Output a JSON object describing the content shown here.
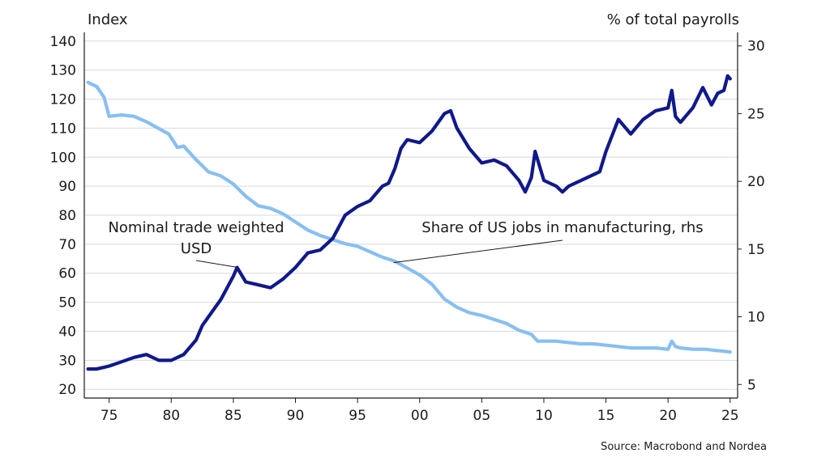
{
  "chart_data": {
    "type": "line",
    "title": "",
    "xlabel": "",
    "left_axis": {
      "label": "Index",
      "range": [
        17,
        143
      ],
      "ticks": [
        20,
        30,
        40,
        50,
        60,
        70,
        80,
        90,
        100,
        110,
        120,
        130,
        140
      ]
    },
    "right_axis": {
      "label": "% of total payrolls",
      "range": [
        4,
        31
      ],
      "ticks": [
        5,
        10,
        15,
        20,
        25,
        30
      ]
    },
    "x_axis": {
      "range": [
        1973.0,
        2025.6
      ],
      "ticks": [
        {
          "year": 1975,
          "label": "75"
        },
        {
          "year": 1980,
          "label": "80"
        },
        {
          "year": 1985,
          "label": "85"
        },
        {
          "year": 1990,
          "label": "90"
        },
        {
          "year": 1995,
          "label": "95"
        },
        {
          "year": 2000,
          "label": "00"
        },
        {
          "year": 2005,
          "label": "05"
        },
        {
          "year": 2010,
          "label": "10"
        },
        {
          "year": 2015,
          "label": "15"
        },
        {
          "year": 2020,
          "label": "20"
        },
        {
          "year": 2025,
          "label": "25"
        }
      ]
    },
    "grid": true,
    "colors": {
      "usd": "#10198a",
      "manufacturing": "#88bff0",
      "grid": "#d9d9d9",
      "axis": "#1a1a1a"
    },
    "series": [
      {
        "name": "Nominal trade weighted USD",
        "axis": "left",
        "x": [
          1973.3,
          1974.0,
          1975.0,
          1976.0,
          1977.0,
          1978.0,
          1979.0,
          1980.0,
          1981.0,
          1982.0,
          1982.5,
          1983.0,
          1984.0,
          1985.0,
          1985.3,
          1986.0,
          1987.0,
          1988.0,
          1989.0,
          1990.0,
          1991.0,
          1992.0,
          1993.0,
          1994.0,
          1995.0,
          1996.0,
          1997.0,
          1997.5,
          1998.0,
          1998.5,
          1999.0,
          2000.0,
          2001.0,
          2002.0,
          2002.5,
          2003.0,
          2004.0,
          2005.0,
          2006.0,
          2007.0,
          2008.0,
          2008.5,
          2009.0,
          2009.3,
          2010.0,
          2011.0,
          2011.5,
          2012.0,
          2013.0,
          2014.0,
          2014.5,
          2015.0,
          2016.0,
          2017.0,
          2018.0,
          2019.0,
          2020.0,
          2020.3,
          2020.6,
          2021.0,
          2022.0,
          2022.8,
          2023.5,
          2024.0,
          2024.5,
          2024.8,
          2025.0
        ],
        "values": [
          27,
          27,
          28,
          29.5,
          31,
          32,
          30,
          30,
          32,
          37,
          42,
          45,
          51,
          59,
          62,
          57,
          56,
          55,
          58,
          62,
          67,
          68,
          72,
          80,
          83,
          85,
          90,
          91,
          96,
          103,
          106,
          105,
          109,
          115,
          116,
          110,
          103,
          98,
          99,
          97,
          92,
          88,
          93,
          102,
          92,
          90,
          88,
          90,
          92,
          94,
          95,
          102,
          113,
          108,
          113,
          116,
          117,
          123,
          114,
          112,
          117,
          124,
          118,
          122,
          123,
          128,
          127
        ]
      },
      {
        "name": "Share of US jobs in manufacturing, rhs",
        "axis": "right",
        "x": [
          1973.3,
          1974.0,
          1974.6,
          1975.0,
          1976.0,
          1977.0,
          1978.0,
          1979.0,
          1979.8,
          1980.5,
          1981.0,
          1982.0,
          1983.0,
          1984.0,
          1985.0,
          1986.0,
          1987.0,
          1988.0,
          1989.0,
          1990.0,
          1991.0,
          1992.0,
          1993.0,
          1994.0,
          1995.0,
          1996.0,
          1997.0,
          1998.0,
          1999.0,
          2000.0,
          2001.0,
          2002.0,
          2003.0,
          2004.0,
          2005.0,
          2006.0,
          2007.0,
          2008.0,
          2009.0,
          2009.5,
          2010.0,
          2011.0,
          2012.0,
          2013.0,
          2014.0,
          2015.0,
          2016.0,
          2017.0,
          2018.0,
          2019.0,
          2020.0,
          2020.3,
          2020.6,
          2021.0,
          2022.0,
          2023.0,
          2024.0,
          2025.0
        ],
        "values": [
          27.3,
          27.0,
          26.2,
          24.8,
          24.9,
          24.8,
          24.4,
          23.9,
          23.5,
          22.5,
          22.6,
          21.6,
          20.7,
          20.4,
          19.8,
          18.9,
          18.2,
          18.0,
          17.6,
          17.0,
          16.4,
          16.0,
          15.7,
          15.4,
          15.2,
          14.8,
          14.4,
          14.1,
          13.6,
          13.1,
          12.4,
          11.3,
          10.7,
          10.3,
          10.1,
          9.8,
          9.5,
          9.0,
          8.7,
          8.2,
          8.2,
          8.2,
          8.1,
          8.0,
          8.0,
          7.9,
          7.8,
          7.7,
          7.7,
          7.7,
          7.6,
          8.2,
          7.8,
          7.7,
          7.6,
          7.6,
          7.5,
          7.4
        ]
      }
    ],
    "annotations": [
      {
        "lines": [
          "Nominal trade weighted",
          "USD"
        ],
        "target_series": 0,
        "target": [
          1985.4,
          62
        ]
      },
      {
        "lines": [
          "Share of US jobs in manufacturing, rhs"
        ],
        "target_series": 1,
        "target": [
          1997.9,
          14.0
        ]
      }
    ]
  },
  "source": "Source: Macrobond and Nordea"
}
